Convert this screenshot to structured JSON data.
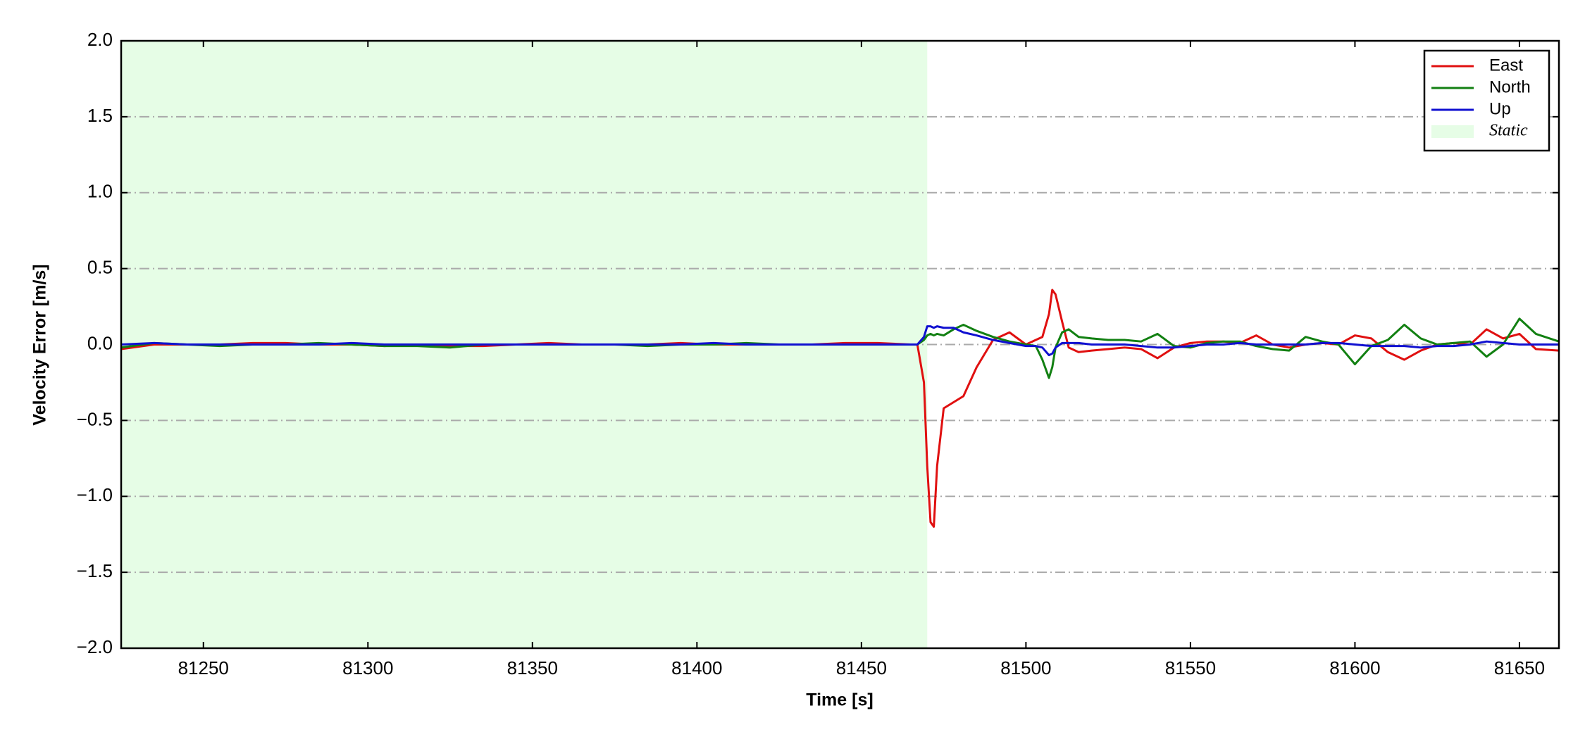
{
  "chart_data": {
    "type": "line",
    "xlabel": "Time [s]",
    "ylabel": "Velocity Error [m/s]",
    "xlim": [
      81225,
      81662
    ],
    "ylim": [
      -2.0,
      2.0
    ],
    "xticks": [
      81250,
      81300,
      81350,
      81400,
      81450,
      81500,
      81550,
      81600,
      81650
    ],
    "yticks": [
      {
        "value": -2.0,
        "label": "−2.0"
      },
      {
        "value": -1.5,
        "label": "−1.5"
      },
      {
        "value": -1.0,
        "label": "−1.0"
      },
      {
        "value": -0.5,
        "label": "−0.5"
      },
      {
        "value": 0.0,
        "label": "0.0"
      },
      {
        "value": 0.5,
        "label": "0.5"
      },
      {
        "value": 1.0,
        "label": "1.0"
      },
      {
        "value": 1.5,
        "label": "1.5"
      },
      {
        "value": 2.0,
        "label": "2.0"
      }
    ],
    "grid": true,
    "legend": "upper right",
    "shaded": {
      "name": "Static",
      "range": [
        81225,
        81470
      ],
      "color": "#e6fde6"
    },
    "x": [
      81225,
      81235,
      81245,
      81255,
      81265,
      81275,
      81285,
      81295,
      81305,
      81315,
      81325,
      81335,
      81345,
      81355,
      81365,
      81375,
      81385,
      81395,
      81405,
      81415,
      81425,
      81435,
      81445,
      81455,
      81465,
      81467,
      81469,
      81470,
      81471,
      81472,
      81473,
      81475,
      81478,
      81481,
      81485,
      81490,
      81495,
      81500,
      81503,
      81505,
      81507,
      81508,
      81509,
      81511,
      81513,
      81516,
      81520,
      81525,
      81530,
      81535,
      81540,
      81545,
      81550,
      81555,
      81560,
      81565,
      81570,
      81575,
      81580,
      81585,
      81590,
      81595,
      81600,
      81605,
      81610,
      81615,
      81620,
      81625,
      81630,
      81635,
      81640,
      81645,
      81650,
      81655,
      81662
    ],
    "series": [
      {
        "name": "East",
        "color": "#e01010",
        "values": [
          -0.03,
          0.0,
          0.0,
          0.0,
          0.01,
          0.01,
          0.0,
          0.0,
          -0.01,
          0.0,
          -0.01,
          -0.01,
          0.0,
          0.01,
          0.0,
          0.0,
          0.0,
          0.01,
          0.0,
          0.0,
          0.0,
          0.0,
          0.01,
          0.01,
          0.0,
          0.0,
          -0.25,
          -0.8,
          -1.17,
          -1.2,
          -0.8,
          -0.42,
          -0.38,
          -0.34,
          -0.15,
          0.03,
          0.08,
          0.0,
          0.03,
          0.05,
          0.2,
          0.36,
          0.33,
          0.15,
          -0.02,
          -0.05,
          -0.04,
          -0.03,
          -0.02,
          -0.03,
          -0.09,
          -0.02,
          0.01,
          0.02,
          0.02,
          0.01,
          0.06,
          0.0,
          -0.02,
          0.0,
          0.01,
          0.0,
          0.06,
          0.04,
          -0.05,
          -0.1,
          -0.04,
          0.0,
          0.01,
          0.0,
          0.1,
          0.04,
          0.07,
          -0.03,
          -0.04
        ]
      },
      {
        "name": "North",
        "color": "#128012",
        "values": [
          -0.02,
          0.01,
          0.0,
          -0.01,
          0.0,
          0.0,
          0.01,
          0.0,
          -0.01,
          -0.01,
          -0.02,
          0.0,
          0.0,
          0.0,
          0.0,
          0.0,
          -0.01,
          0.0,
          0.0,
          0.01,
          0.0,
          0.0,
          0.0,
          0.0,
          0.0,
          0.0,
          0.03,
          0.06,
          0.07,
          0.06,
          0.07,
          0.06,
          0.1,
          0.13,
          0.09,
          0.05,
          0.02,
          0.0,
          -0.01,
          -0.1,
          -0.22,
          -0.15,
          -0.02,
          0.08,
          0.1,
          0.05,
          0.04,
          0.03,
          0.03,
          0.02,
          0.07,
          -0.01,
          -0.02,
          0.01,
          0.02,
          0.02,
          -0.01,
          -0.03,
          -0.04,
          0.05,
          0.02,
          0.0,
          -0.13,
          -0.01,
          0.03,
          0.13,
          0.04,
          0.0,
          0.01,
          0.02,
          -0.08,
          0.0,
          0.17,
          0.07,
          0.02
        ]
      },
      {
        "name": "Up",
        "color": "#1010d0",
        "values": [
          0.0,
          0.01,
          0.0,
          0.0,
          0.0,
          0.0,
          0.0,
          0.01,
          0.0,
          0.0,
          0.0,
          0.0,
          0.0,
          0.0,
          0.0,
          0.0,
          0.0,
          0.0,
          0.01,
          0.0,
          0.0,
          0.0,
          0.0,
          0.0,
          0.0,
          0.0,
          0.05,
          0.12,
          0.12,
          0.11,
          0.12,
          0.11,
          0.11,
          0.08,
          0.06,
          0.03,
          0.01,
          -0.01,
          -0.01,
          -0.02,
          -0.07,
          -0.06,
          -0.02,
          0.01,
          0.01,
          0.01,
          0.0,
          0.0,
          0.0,
          -0.01,
          -0.02,
          -0.02,
          -0.01,
          0.0,
          0.0,
          0.01,
          0.0,
          0.0,
          0.0,
          0.0,
          0.01,
          0.01,
          0.0,
          -0.01,
          -0.01,
          -0.01,
          -0.02,
          -0.01,
          -0.01,
          0.0,
          0.02,
          0.01,
          0.0,
          0.0,
          0.0
        ]
      }
    ]
  }
}
